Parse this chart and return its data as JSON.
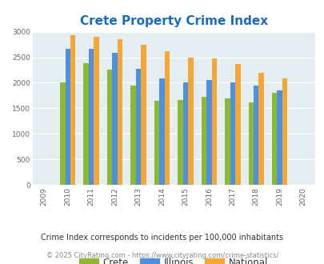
{
  "title": "Crete Property Crime Index",
  "years": [
    2009,
    2010,
    2011,
    2012,
    2013,
    2014,
    2015,
    2016,
    2017,
    2018,
    2019,
    2020
  ],
  "crete": [
    null,
    2010,
    2380,
    2250,
    1950,
    1650,
    1660,
    1720,
    1690,
    1610,
    1810,
    null
  ],
  "illinois": [
    null,
    2670,
    2670,
    2590,
    2280,
    2090,
    2000,
    2060,
    2010,
    1940,
    1850,
    null
  ],
  "national": [
    null,
    2930,
    2900,
    2860,
    2750,
    2610,
    2500,
    2470,
    2360,
    2200,
    2090,
    null
  ],
  "crete_color": "#8db832",
  "illinois_color": "#4d8fe0",
  "national_color": "#f5a733",
  "bg_color": "#e4eef2",
  "ylim": [
    0,
    3000
  ],
  "yticks": [
    0,
    500,
    1000,
    1500,
    2000,
    2500,
    3000
  ],
  "footnote1": "Crime Index corresponds to incidents per 100,000 inhabitants",
  "footnote2": "© 2025 CityRating.com - https://www.cityrating.com/crime-statistics/",
  "legend_labels": [
    "Crete",
    "Illinois",
    "National"
  ],
  "bar_width": 0.22
}
